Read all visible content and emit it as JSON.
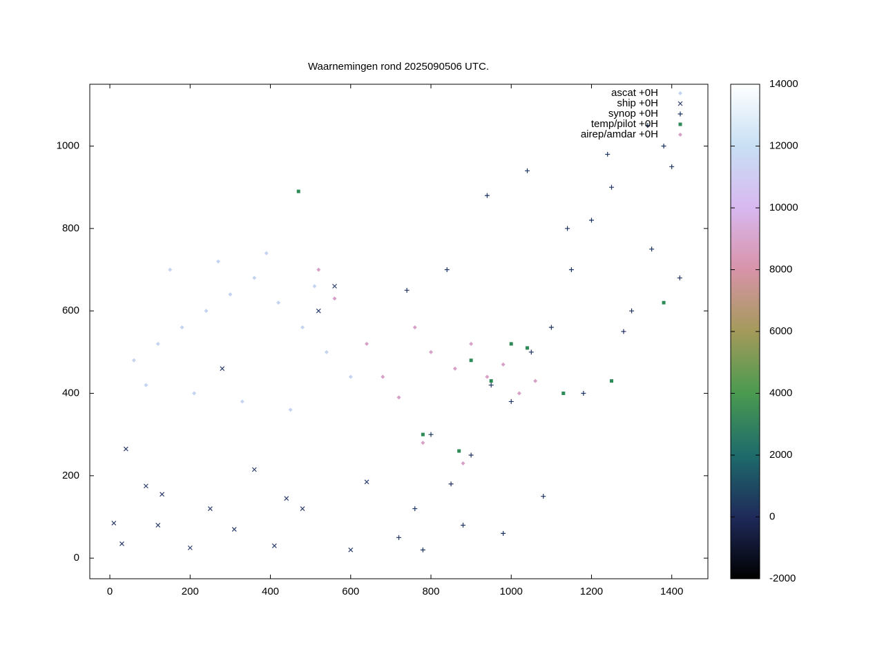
{
  "chart_data": {
    "type": "scatter",
    "title": "Waarnemingen rond 2025090506 UTC.",
    "xlim": [
      -50,
      1490
    ],
    "ylim": [
      -50,
      1150
    ],
    "xticks": [
      0,
      200,
      400,
      600,
      800,
      1000,
      1200,
      1400
    ],
    "yticks": [
      0,
      200,
      400,
      600,
      800,
      1000
    ],
    "grid": false,
    "legend": "top-right",
    "colorbar": {
      "clim": [
        -2000,
        14000
      ],
      "ticks": [
        -2000,
        0,
        2000,
        4000,
        6000,
        8000,
        10000,
        12000,
        14000
      ],
      "colors": [
        "#000000",
        "#1f2a5a",
        "#1e6b6b",
        "#4a9a50",
        "#a49a5a",
        "#d893a8",
        "#d8b8f0",
        "#c8e0f4",
        "#ffffff"
      ]
    },
    "series": [
      {
        "name": "ascat +0H",
        "marker": "diamond",
        "color": "#c4d4f0",
        "x": [
          60,
          120,
          180,
          240,
          300,
          360,
          420,
          480,
          540,
          90,
          210,
          330,
          450,
          150,
          270,
          390,
          510,
          600
        ],
        "values": [
          480,
          520,
          560,
          600,
          640,
          680,
          620,
          560,
          500,
          420,
          400,
          380,
          360,
          700,
          720,
          740,
          660,
          440
        ]
      },
      {
        "name": "ship +0H",
        "marker": "cross",
        "color": "#2a3a6a",
        "x": [
          10,
          40,
          90,
          130,
          200,
          250,
          310,
          360,
          410,
          440,
          480,
          520,
          560,
          600,
          640,
          30,
          120,
          280
        ],
        "values": [
          85,
          265,
          175,
          155,
          25,
          120,
          70,
          215,
          30,
          145,
          120,
          600,
          660,
          20,
          185,
          35,
          80,
          460
        ]
      },
      {
        "name": "synop +0H",
        "marker": "plus",
        "color": "#1a3060",
        "x": [
          720,
          760,
          800,
          850,
          900,
          950,
          1000,
          1050,
          1100,
          1150,
          1200,
          1250,
          1300,
          1350,
          1400,
          780,
          880,
          980,
          1080,
          1180,
          1280,
          1380,
          740,
          840,
          940,
          1040,
          1140,
          1240,
          1340,
          1420
        ],
        "values": [
          50,
          120,
          300,
          180,
          250,
          420,
          380,
          500,
          560,
          700,
          820,
          900,
          600,
          750,
          950,
          20,
          80,
          60,
          150,
          400,
          550,
          1000,
          650,
          700,
          880,
          940,
          800,
          980,
          1050,
          680
        ]
      },
      {
        "name": "temp/pilot +0H",
        "marker": "square",
        "color": "#2e8b57",
        "x": [
          470,
          900,
          950,
          1000,
          1130,
          1250,
          1380,
          780,
          870,
          1040
        ],
        "values": [
          890,
          480,
          430,
          520,
          400,
          430,
          620,
          300,
          260,
          510
        ]
      },
      {
        "name": "airep/amdar +0H",
        "marker": "diamond",
        "color": "#d8a0c8",
        "x": [
          520,
          560,
          640,
          680,
          720,
          760,
          800,
          860,
          900,
          940,
          980,
          1020,
          1060,
          880,
          780
        ],
        "values": [
          700,
          630,
          520,
          440,
          390,
          560,
          500,
          460,
          520,
          440,
          470,
          400,
          430,
          230,
          280
        ]
      }
    ]
  }
}
